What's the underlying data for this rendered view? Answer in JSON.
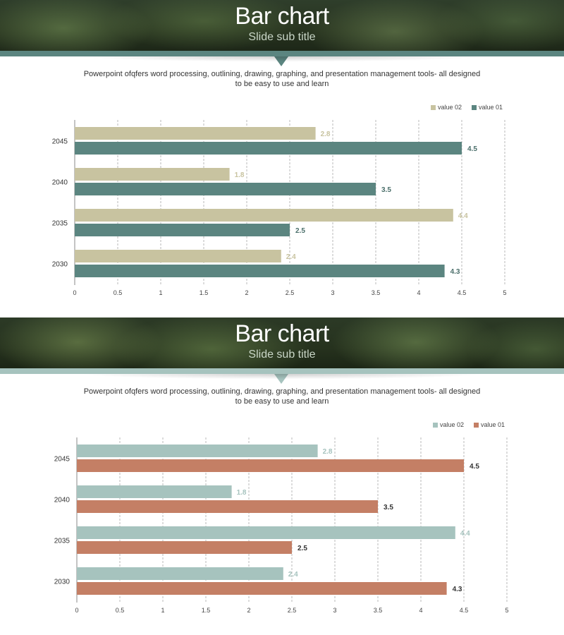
{
  "slides": [
    {
      "title": "Bar chart",
      "subtitle": "Slide sub title",
      "description_line1": "Powerpoint ofqfers word processing, outlining, drawing, graphing, and presentation management tools- all designed",
      "description_line2": "to be easy to use and learn",
      "colors": {
        "value02": "#c8c3a0",
        "value01": "#5b8580",
        "label02": "#c8c3a0",
        "label01": "#4a6e6a"
      }
    },
    {
      "title": "Bar chart",
      "subtitle": "Slide sub title",
      "description_line1": "Powerpoint ofqfers word processing, outlining, drawing, graphing, and presentation management tools- all designed",
      "description_line2": "to be easy to use and learn",
      "colors": {
        "value02": "#a6c3be",
        "value01": "#c47f65",
        "label02": "#a6c3be",
        "label01": "#333333"
      }
    }
  ],
  "chart_data": [
    {
      "type": "bar",
      "orientation": "horizontal",
      "categories": [
        "2045",
        "2040",
        "2035",
        "2030"
      ],
      "series": [
        {
          "name": "value 02",
          "values": [
            2.8,
            1.8,
            4.4,
            2.4
          ]
        },
        {
          "name": "value 01",
          "values": [
            4.5,
            3.5,
            2.5,
            4.3
          ]
        }
      ],
      "legend": [
        "value 02",
        "value 01"
      ],
      "legend_position": "top-right",
      "xlim": [
        0,
        5
      ],
      "xticks": [
        "0",
        "0.5",
        "1",
        "1.5",
        "2",
        "2.5",
        "3",
        "3.5",
        "4",
        "4.5",
        "5"
      ],
      "gridlines": "vertical-dashed",
      "data_labels": true
    },
    {
      "type": "bar",
      "orientation": "horizontal",
      "categories": [
        "2045",
        "2040",
        "2035",
        "2030"
      ],
      "series": [
        {
          "name": "value 02",
          "values": [
            2.8,
            1.8,
            4.4,
            2.4
          ]
        },
        {
          "name": "value 01",
          "values": [
            4.5,
            3.5,
            2.5,
            4.3
          ]
        }
      ],
      "legend": [
        "value 02",
        "value 01"
      ],
      "legend_position": "top-right",
      "xlim": [
        0,
        5
      ],
      "xticks": [
        "0",
        "0.5",
        "1",
        "1.5",
        "2",
        "2.5",
        "3",
        "3.5",
        "4",
        "4.5",
        "5"
      ],
      "gridlines": "vertical-dashed",
      "data_labels": true
    }
  ]
}
